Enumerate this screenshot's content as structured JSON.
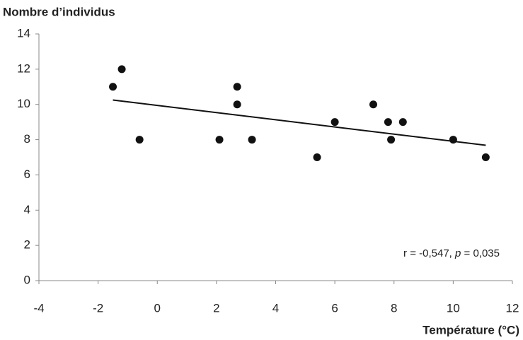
{
  "chart_data": {
    "type": "scatter",
    "y_label": "Nombre d’individus",
    "x_label": "Température (°C)",
    "x": [
      -1.5,
      -1.2,
      -0.6,
      2.1,
      2.7,
      2.7,
      3.2,
      5.4,
      6.0,
      7.3,
      7.8,
      7.9,
      8.3,
      10.0,
      11.1
    ],
    "y": [
      11,
      12,
      8,
      8,
      11,
      10,
      8,
      7,
      9,
      10,
      9,
      8,
      9,
      8,
      7
    ],
    "color": "#111111",
    "trendline": {
      "x": [
        -1.5,
        11.1
      ],
      "y": [
        10.25,
        7.68
      ],
      "color": "#111111"
    },
    "annotation": [
      "r = -0,547, ",
      "p",
      " = 0,035"
    ],
    "xlim": [
      -4,
      12
    ],
    "xticks": [
      -4,
      -2,
      0,
      2,
      4,
      6,
      8,
      10,
      12
    ],
    "ylim": [
      0,
      14
    ],
    "yticks": [
      0,
      2,
      4,
      6,
      8,
      10,
      12,
      14
    ],
    "grid": false
  }
}
